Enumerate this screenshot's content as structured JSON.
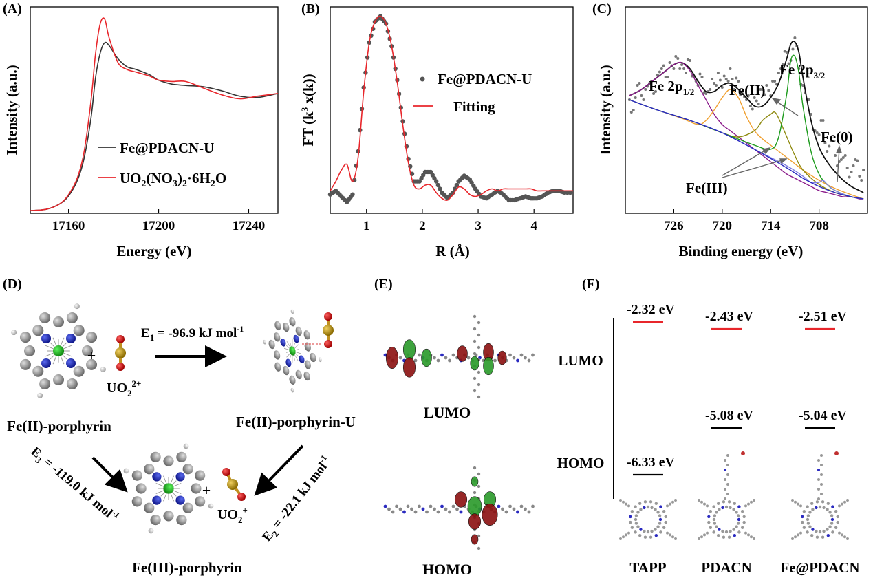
{
  "panels": {
    "A": {
      "label": "(A)",
      "chart_data": {
        "type": "line",
        "xlabel": "Energy (eV)",
        "ylabel": "Intensity (a.u.)",
        "xlim": [
          17143,
          17253
        ],
        "ylim": [
          0,
          1.55
        ],
        "xticks": [
          17160,
          17200,
          17240
        ],
        "legend_position": "lower-right",
        "series": [
          {
            "name": "Fe@PDACN-U",
            "color": "#333333",
            "x": [
              17143,
              17150,
              17156,
              17160,
              17164,
              17167,
              17170,
              17172,
              17174,
              17176,
              17178,
              17182,
              17186,
              17190,
              17196,
              17200,
              17206,
              17212,
              17220,
              17228,
              17236,
              17244,
              17253
            ],
            "y": [
              0.02,
              0.03,
              0.07,
              0.13,
              0.25,
              0.42,
              0.72,
              1.02,
              1.2,
              1.28,
              1.26,
              1.16,
              1.1,
              1.08,
              1.04,
              1.0,
              0.97,
              0.96,
              0.95,
              0.92,
              0.88,
              0.87,
              0.9
            ]
          },
          {
            "name": "UO2(NO3)2·6H2O",
            "color": "#e8262b",
            "x": [
              17143,
              17150,
              17156,
              17160,
              17164,
              17167,
              17170,
              17172,
              17174,
              17176,
              17178,
              17182,
              17186,
              17190,
              17196,
              17200,
              17206,
              17212,
              17220,
              17228,
              17236,
              17244,
              17253
            ],
            "y": [
              0.02,
              0.03,
              0.07,
              0.14,
              0.27,
              0.47,
              0.85,
              1.2,
              1.42,
              1.46,
              1.32,
              1.13,
              1.08,
              1.06,
              1.03,
              1.0,
              0.99,
              0.99,
              0.94,
              0.89,
              0.86,
              0.88,
              0.9
            ]
          }
        ]
      },
      "legend": [
        {
          "base": "Fe@PDACN-U"
        },
        {
          "base": "UO",
          "s1": "2",
          "mid1": "(NO",
          "s2": "3",
          "mid2": ")",
          "s3": "2",
          "tail": "·6H",
          "s4": "2",
          "end": "O"
        }
      ]
    },
    "B": {
      "label": "(B)",
      "chart_data": {
        "type": "line",
        "xlabel": "R (Å)",
        "ylabel_pre": "FT (k",
        "ylabel_sup": "3",
        "ylabel_post": " x(k))",
        "xlim": [
          0.35,
          4.7
        ],
        "ylim": [
          -0.05,
          1.05
        ],
        "xticks": [
          1,
          2,
          3,
          4
        ],
        "legend_position": "upper-right",
        "series": [
          {
            "name": "Fe@PDACN-U",
            "style": "scatter",
            "color": "#555555",
            "x": [
              0.35,
              0.45,
              0.55,
              0.65,
              0.75,
              0.85,
              0.95,
              1.05,
              1.15,
              1.25,
              1.35,
              1.45,
              1.55,
              1.65,
              1.75,
              1.85,
              1.95,
              2.05,
              2.15,
              2.25,
              2.35,
              2.45,
              2.55,
              2.65,
              2.75,
              2.85,
              2.95,
              3.05,
              3.15,
              3.25,
              3.35,
              3.45,
              3.55,
              3.65,
              3.75,
              3.85,
              3.95,
              4.05,
              4.15,
              4.25,
              4.35,
              4.45,
              4.55,
              4.7
            ],
            "y": [
              0.05,
              0.07,
              0.04,
              0.01,
              0.05,
              0.28,
              0.62,
              0.86,
              0.97,
              1.0,
              0.96,
              0.84,
              0.66,
              0.44,
              0.24,
              0.12,
              0.12,
              0.17,
              0.17,
              0.12,
              0.06,
              0.03,
              0.06,
              0.12,
              0.15,
              0.13,
              0.08,
              0.04,
              0.03,
              0.05,
              0.07,
              0.05,
              0.02,
              0.02,
              0.03,
              0.04,
              0.03,
              0.03,
              0.04,
              0.06,
              0.07,
              0.07,
              0.06,
              0.06
            ]
          },
          {
            "name": "Fitting",
            "style": "line",
            "color": "#e8262b",
            "x": [
              0.35,
              0.45,
              0.55,
              0.65,
              0.75,
              0.85,
              0.95,
              1.05,
              1.15,
              1.25,
              1.35,
              1.45,
              1.55,
              1.65,
              1.75,
              1.85,
              1.95,
              2.05,
              2.15,
              2.25,
              2.35,
              2.45,
              2.55,
              2.65,
              2.75,
              2.85,
              2.95,
              3.05,
              3.15,
              3.25,
              3.35,
              3.45,
              3.55,
              3.65,
              3.75,
              3.85,
              3.95,
              4.05,
              4.15,
              4.25,
              4.35,
              4.45,
              4.55,
              4.7
            ],
            "y": [
              0.07,
              0.12,
              0.18,
              0.21,
              0.12,
              0.25,
              0.6,
              0.86,
              0.97,
              1.0,
              0.96,
              0.84,
              0.65,
              0.42,
              0.22,
              0.1,
              0.08,
              0.1,
              0.1,
              0.06,
              0.03,
              0.02,
              0.05,
              0.09,
              0.08,
              0.05,
              0.04,
              0.05,
              0.07,
              0.08,
              0.07,
              0.08,
              0.08,
              0.08,
              0.08,
              0.08,
              0.08,
              0.07,
              0.07,
              0.07,
              0.07,
              0.07,
              0.07,
              0.07
            ]
          }
        ]
      }
    },
    "C": {
      "label": "(C)",
      "chart_data": {
        "type": "line",
        "xlabel": "Binding energy (eV)",
        "ylabel": "Intensity (a.u.)",
        "xlim": [
          732,
          702
        ],
        "ylim": [
          0,
          1.0
        ],
        "xticks": [
          726,
          720,
          714,
          708
        ],
        "x_reversed": true,
        "series": [
          {
            "name": "raw",
            "style": "scatter",
            "color": "#777777",
            "x": [
              731.5,
              731,
              730.5,
              730,
              729.5,
              729,
              728.5,
              728,
              727.5,
              727,
              726.5,
              726,
              725.5,
              725,
              724.5,
              724,
              723.5,
              723,
              722.5,
              722,
              721.5,
              721,
              720.5,
              720,
              719.5,
              719,
              718.5,
              718,
              717.5,
              717,
              716.5,
              716,
              715.5,
              715,
              714.5,
              714,
              713.5,
              713,
              712.5,
              712,
              711.5,
              711,
              710.5,
              710,
              709.5,
              709,
              708.5,
              708,
              707.5,
              707,
              706.5,
              706,
              705.5,
              705,
              704.5,
              704,
              703.5,
              703,
              702.5
            ],
            "y": [
              0.55,
              0.5,
              0.62,
              0.57,
              0.6,
              0.63,
              0.58,
              0.67,
              0.7,
              0.66,
              0.73,
              0.7,
              0.75,
              0.72,
              0.68,
              0.74,
              0.66,
              0.62,
              0.66,
              0.58,
              0.6,
              0.63,
              0.68,
              0.61,
              0.65,
              0.7,
              0.6,
              0.64,
              0.58,
              0.55,
              0.52,
              0.56,
              0.53,
              0.6,
              0.62,
              0.57,
              0.64,
              0.68,
              0.72,
              0.78,
              0.74,
              0.85,
              0.7,
              0.62,
              0.55,
              0.48,
              0.4,
              0.38,
              0.45,
              0.3,
              0.35,
              0.28,
              0.25,
              0.27,
              0.22,
              0.2,
              0.26,
              0.18,
              0.21
            ]
          },
          {
            "name": "envelope",
            "color": "#111111",
            "x": [
              731.5,
              730,
              728,
              727,
              726,
              725,
              724,
              723,
              722,
              721,
              720,
              719,
              718,
              717,
              716,
              715,
              714,
              713,
              712,
              711.5,
              711,
              710.5,
              710,
              709,
              708,
              707,
              706,
              705,
              704,
              703,
              702.5
            ],
            "y": [
              0.57,
              0.6,
              0.66,
              0.69,
              0.72,
              0.73,
              0.7,
              0.64,
              0.59,
              0.59,
              0.62,
              0.63,
              0.6,
              0.56,
              0.52,
              0.52,
              0.56,
              0.63,
              0.75,
              0.82,
              0.83,
              0.78,
              0.66,
              0.45,
              0.32,
              0.25,
              0.2,
              0.16,
              0.13,
              0.11,
              0.1
            ]
          },
          {
            "name": "Fe 2p1/2 peak",
            "color": "#8b1a8b",
            "x": [
              731.5,
              730,
              728,
              727,
              726,
              725,
              724,
              723,
              722,
              721,
              720,
              719,
              718,
              717,
              716,
              715,
              714,
              713,
              712,
              711,
              710,
              709,
              708,
              707,
              706,
              705,
              704,
              703,
              702.5
            ],
            "y": [
              0.57,
              0.6,
              0.66,
              0.69,
              0.72,
              0.73,
              0.69,
              0.62,
              0.55,
              0.48,
              0.43,
              0.4,
              0.37,
              0.34,
              0.31,
              0.28,
              0.25,
              0.22,
              0.19,
              0.17,
              0.15,
              0.13,
              0.11,
              0.1,
              0.09,
              0.08,
              0.08,
              0.07,
              0.07
            ]
          },
          {
            "name": "satellite",
            "color": "#f0a030",
            "x": [
              731.5,
              728,
              725,
              723,
              722,
              721,
              720,
              719,
              718,
              717,
              716,
              715,
              714,
              713,
              712,
              711,
              710,
              708,
              706,
              704,
              702.5
            ],
            "y": [
              0.55,
              0.5,
              0.46,
              0.43,
              0.45,
              0.5,
              0.56,
              0.6,
              0.56,
              0.47,
              0.4,
              0.36,
              0.33,
              0.3,
              0.27,
              0.24,
              0.21,
              0.16,
              0.12,
              0.09,
              0.07
            ]
          },
          {
            "name": "Fe(III)",
            "color": "#8f8a10",
            "x": [
              731.5,
              728,
              724,
              720,
              718,
              716,
              715,
              714,
              713.5,
              713,
              712,
              711,
              710,
              708,
              706,
              704,
              702.5
            ],
            "y": [
              0.55,
              0.5,
              0.45,
              0.39,
              0.37,
              0.4,
              0.45,
              0.48,
              0.49,
              0.46,
              0.37,
              0.28,
              0.21,
              0.14,
              0.1,
              0.08,
              0.07
            ]
          },
          {
            "name": "Fe(II)",
            "color": "#1a9a1a",
            "x": [
              731.5,
              728,
              724,
              720,
              716,
              714,
              713,
              712,
              711.5,
              711,
              710.5,
              710,
              709,
              708,
              707,
              706,
              704,
              702.5
            ],
            "y": [
              0.55,
              0.5,
              0.45,
              0.39,
              0.33,
              0.31,
              0.37,
              0.58,
              0.74,
              0.76,
              0.68,
              0.52,
              0.3,
              0.19,
              0.14,
              0.11,
              0.08,
              0.07
            ]
          },
          {
            "name": "Fe(0)",
            "color": "#8080e0",
            "x": [
              731.5,
              728,
              724,
              720,
              716,
              712,
              710,
              709,
              708,
              707.5,
              707,
              706,
              704,
              702.5
            ],
            "y": [
              0.55,
              0.5,
              0.45,
              0.39,
              0.31,
              0.23,
              0.18,
              0.15,
              0.15,
              0.16,
              0.14,
              0.11,
              0.08,
              0.07
            ]
          },
          {
            "name": "background",
            "color": "#2a2ac0",
            "x": [
              731.5,
              728,
              724,
              720,
              716,
              712,
              710,
              708,
              706,
              704,
              702.5
            ],
            "y": [
              0.55,
              0.5,
              0.45,
              0.39,
              0.31,
              0.22,
              0.17,
              0.13,
              0.1,
              0.08,
              0.07
            ]
          }
        ]
      },
      "annotations": {
        "fe2p12_base": "Fe 2p",
        "fe2p12_sub": "1/2",
        "fe2p32_base": "Fe 2p",
        "fe2p32_sub": "3/2",
        "fe2": "Fe(II)",
        "fe3": "Fe(III)",
        "fe0": "Fe(0)"
      }
    },
    "D": {
      "label": "(D)",
      "e1_base": "E",
      "e1_sub": "1",
      "e1_val": " = -96.9 kJ mol",
      "e1_sup": "-1",
      "e2_base": "E",
      "e2_sub": "2",
      "e2_val": " = -22.1 kJ mol",
      "e2_sup": "-1",
      "e3_base": "E",
      "e3_sub": "3",
      "e3_val": " = -119.0 kJ mol",
      "e3_sup": "-1",
      "uo2_2_base": "UO",
      "uo2_2_sub": "2",
      "uo2_2_sup": "2+",
      "uo2_1_base": "UO",
      "uo2_1_sub": "2",
      "uo2_1_sup": "+",
      "plus": "+",
      "fe2_porph": "Fe(II)-porphyrin",
      "fe2_porph_u": "Fe(II)-porphyrin-U",
      "fe3_porph": "Fe(III)-porphyrin"
    },
    "E": {
      "label": "(E)",
      "lumo": "LUMO",
      "homo": "HOMO"
    },
    "F": {
      "label": "(F)",
      "lumo": "LUMO",
      "homo": "HOMO",
      "chart_data": {
        "type": "table",
        "categories": [
          "TAPP",
          "PDACN",
          "Fe@PDACN"
        ],
        "lumo_eV": [
          -2.32,
          -2.43,
          -2.51
        ],
        "homo_eV": [
          -6.33,
          -5.08,
          -5.04
        ]
      },
      "lumo_labels": [
        "-2.32 eV",
        "-2.43 eV",
        "-2.51 eV"
      ],
      "homo_labels": [
        "-6.33 eV",
        "-5.08 eV",
        "-5.04 eV"
      ],
      "lumo_color": "#e8262b",
      "homo_color": "#000000"
    }
  }
}
